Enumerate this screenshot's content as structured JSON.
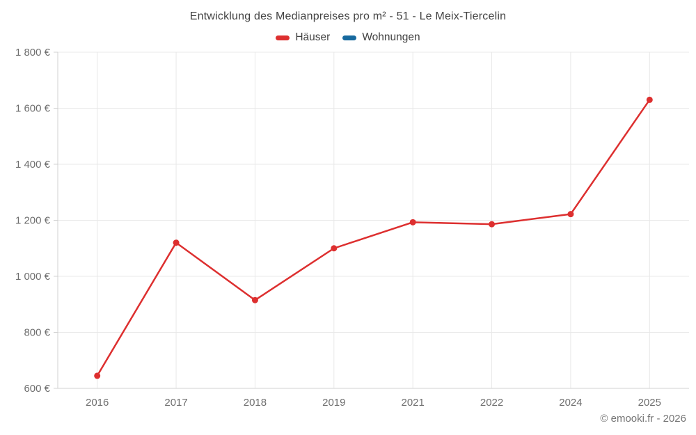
{
  "title": "Entwicklung des Medianpreises pro m² - 51 - Le Meix-Tiercelin",
  "legend": [
    {
      "label": "Häuser",
      "color": "#dd2f2f"
    },
    {
      "label": "Wohnungen",
      "color": "#17699e"
    }
  ],
  "footer": "© emooki.fr - 2026",
  "colors": {
    "grid": "#e8e8e8",
    "axis": "#d0d0d0",
    "tick_text": "#6e6e6e",
    "title_text": "#424242"
  },
  "chart_data": {
    "type": "line",
    "title": "Entwicklung des Medianpreises pro m² - 51 - Le Meix-Tiercelin",
    "categories": [
      "2016",
      "2017",
      "2018",
      "2019",
      "2021",
      "2022",
      "2024",
      "2025"
    ],
    "series": [
      {
        "name": "Häuser",
        "color": "#dd2f2f",
        "values": [
          645,
          1120,
          915,
          1100,
          1193,
          1186,
          1222,
          1630
        ]
      },
      {
        "name": "Wohnungen",
        "color": "#17699e",
        "values": []
      }
    ],
    "xlabel": "",
    "ylabel": "",
    "ylim": [
      600,
      1800
    ],
    "yticks": [
      600,
      800,
      1000,
      1200,
      1400,
      1600,
      1800
    ],
    "ytick_labels": [
      "600 €",
      "800 €",
      "1 000 €",
      "1 200 €",
      "1 400 €",
      "1 600 €",
      "1 800 €"
    ],
    "grid": true,
    "legend_position": "top"
  }
}
